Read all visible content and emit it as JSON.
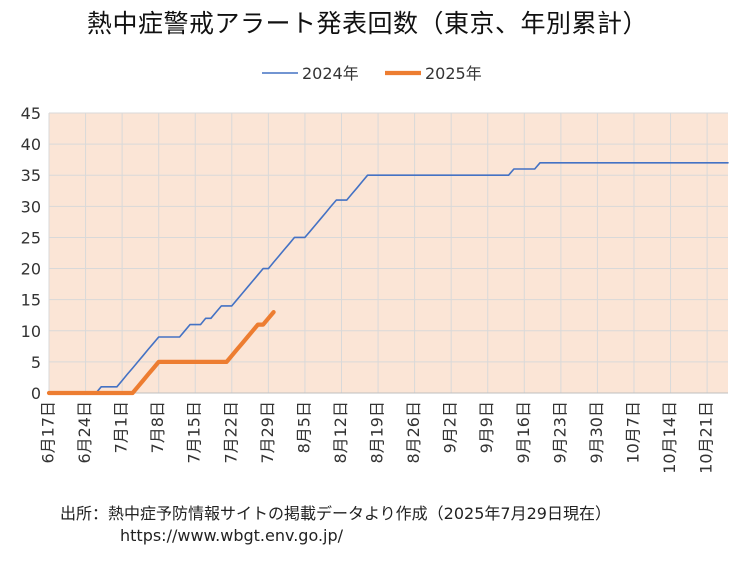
{
  "chart_data": {
    "type": "line",
    "title": "熱中症警戒アラート発表回数（東京、年別累計）",
    "xlabel": "",
    "ylabel": "",
    "ylim": [
      0,
      45
    ],
    "yticks": [
      0,
      5,
      10,
      15,
      20,
      25,
      30,
      35,
      40,
      45
    ],
    "x_start": "6月17日",
    "x_end": "10月25日",
    "x_ticks": [
      "6月17日",
      "6月24日",
      "7月1日",
      "7月8日",
      "7月15日",
      "7月22日",
      "7月29日",
      "8月5日",
      "8月12日",
      "8月19日",
      "8月26日",
      "9月2日",
      "9月9日",
      "9月16日",
      "9月23日",
      "9月30日",
      "10月7日",
      "10月14日",
      "10月21日"
    ],
    "grid": true,
    "legend_position": "top-center",
    "plot_background": "#fbe5d6",
    "series": [
      {
        "name": "2024年",
        "color": "#4472c4",
        "points": [
          [
            "6月17日",
            0
          ],
          [
            "6月26日",
            0
          ],
          [
            "6月27日",
            1
          ],
          [
            "6月28日",
            1
          ],
          [
            "6月29日",
            1
          ],
          [
            "6月30日",
            1
          ],
          [
            "7月1日",
            2
          ],
          [
            "7月2日",
            3
          ],
          [
            "7月3日",
            4
          ],
          [
            "7月4日",
            5
          ],
          [
            "7月5日",
            6
          ],
          [
            "7月6日",
            7
          ],
          [
            "7月7日",
            8
          ],
          [
            "7月8日",
            9
          ],
          [
            "7月12日",
            9
          ],
          [
            "7月13日",
            10
          ],
          [
            "7月14日",
            11
          ],
          [
            "7月16日",
            11
          ],
          [
            "7月17日",
            12
          ],
          [
            "7月18日",
            12
          ],
          [
            "7月19日",
            13
          ],
          [
            "7月20日",
            14
          ],
          [
            "7月22日",
            14
          ],
          [
            "7月23日",
            15
          ],
          [
            "7月24日",
            16
          ],
          [
            "7月25日",
            17
          ],
          [
            "7月26日",
            18
          ],
          [
            "7月27日",
            19
          ],
          [
            "7月28日",
            20
          ],
          [
            "7月29日",
            20
          ],
          [
            "7月30日",
            21
          ],
          [
            "7月31日",
            22
          ],
          [
            "8月1日",
            23
          ],
          [
            "8月2日",
            24
          ],
          [
            "8月3日",
            25
          ],
          [
            "8月5日",
            25
          ],
          [
            "8月6日",
            26
          ],
          [
            "8月7日",
            27
          ],
          [
            "8月8日",
            28
          ],
          [
            "8月9日",
            29
          ],
          [
            "8月10日",
            30
          ],
          [
            "8月11日",
            31
          ],
          [
            "8月13日",
            31
          ],
          [
            "8月14日",
            32
          ],
          [
            "8月15日",
            33
          ],
          [
            "8月16日",
            34
          ],
          [
            "8月17日",
            35
          ],
          [
            "9月13日",
            35
          ],
          [
            "9月14日",
            36
          ],
          [
            "9月18日",
            36
          ],
          [
            "9月19日",
            37
          ],
          [
            "10月25日",
            37
          ]
        ]
      },
      {
        "name": "2025年",
        "color": "#ed7d31",
        "points": [
          [
            "6月17日",
            0
          ],
          [
            "7月1日",
            0
          ],
          [
            "7月2日",
            0
          ],
          [
            "7月3日",
            0
          ],
          [
            "7月4日",
            1
          ],
          [
            "7月5日",
            2
          ],
          [
            "7月6日",
            3
          ],
          [
            "7月7日",
            4
          ],
          [
            "7月8日",
            5
          ],
          [
            "7月21日",
            5
          ],
          [
            "7月22日",
            6
          ],
          [
            "7月23日",
            7
          ],
          [
            "7月24日",
            8
          ],
          [
            "7月25日",
            9
          ],
          [
            "7月26日",
            10
          ],
          [
            "7月27日",
            11
          ],
          [
            "7月28日",
            11
          ],
          [
            "7月29日",
            12
          ],
          [
            "7月30日",
            13
          ]
        ]
      }
    ],
    "source": "出所：熱中症予防情報サイトの掲載データより作成（2025年7月29日現在）",
    "source_url": "https://www.wbgt.env.go.jp/"
  }
}
